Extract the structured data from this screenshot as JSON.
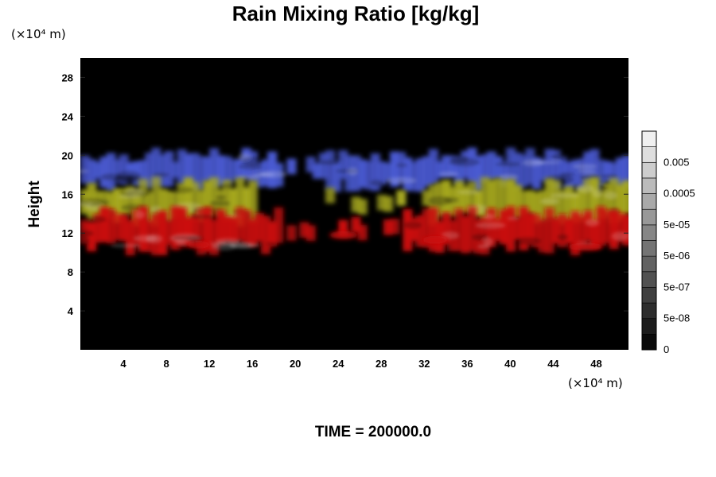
{
  "chart_data": {
    "type": "heatmap",
    "title": "Rain Mixing Ratio [kg/kg]",
    "ylabel": "Height",
    "y_unit": "(×10⁴ m)",
    "x_unit": "(×10⁴ m)",
    "xlim": [
      0,
      51
    ],
    "ylim": [
      0,
      30
    ],
    "x_ticks": [
      4,
      8,
      12,
      16,
      20,
      24,
      28,
      32,
      36,
      40,
      44,
      48
    ],
    "y_ticks": [
      4,
      8,
      12,
      16,
      20,
      24,
      28
    ],
    "background_color": "#000000",
    "colorbar": {
      "labels": [
        "0",
        "5e-08",
        "5e-07",
        "5e-06",
        "5e-05",
        "0.0005",
        "0.005"
      ],
      "levels": 14
    },
    "layers": [
      {
        "color": "#4a5ad2",
        "y_range": [
          17,
          20
        ],
        "x_gap": [
          18,
          22
        ]
      },
      {
        "color": "#a6a81f",
        "y_range": [
          13.5,
          17
        ],
        "x_gap": [
          16,
          32
        ]
      },
      {
        "color": "#cc0b0b",
        "y_range": [
          10.5,
          14
        ],
        "x_gap": [
          18,
          30
        ]
      }
    ],
    "annotation": "TIME = 200000.0"
  }
}
